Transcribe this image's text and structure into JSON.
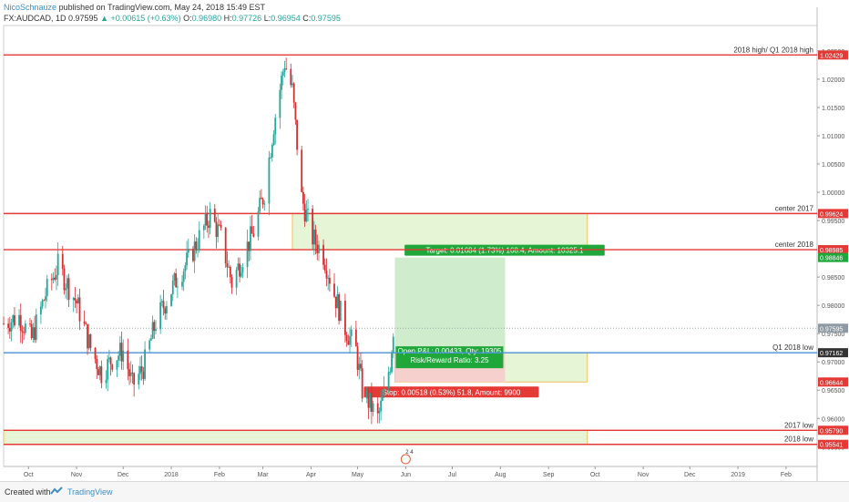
{
  "header": {
    "author": "NicoSchnauze",
    "published": "published on TradingView.com, May 24, 2018 15:49 EST",
    "symbol": "FX:AUDCAD, 1D",
    "last": "0.97595",
    "change": "▲ +0.00615 (+0.63%)",
    "o_label": "O:",
    "o_val": "0.96980",
    "h_label": "H:",
    "h_val": "0.97726",
    "l_label": "L:",
    "l_val": "0.96954",
    "c_label": "C:",
    "c_val": "0.97595"
  },
  "footer": {
    "created_with": "Created with",
    "brand": "TradingView"
  },
  "colors": {
    "up": "#26a69a",
    "down": "#d32f2f",
    "level": "#e53935",
    "blue_level": "#4a90d9",
    "zone_fill": "#e6f5d6",
    "zone_border": "#f0c060",
    "target_fill": "#cfeccd",
    "stop_fill": "#f6d0cc",
    "badge_green": "#1fa73a",
    "badge_red": "#e53935",
    "badge_dark": "#333333"
  },
  "chart_data": {
    "type": "candlestick",
    "instrument": "FX:AUDCAD",
    "timeframe": "1D",
    "y_range": [
      0.9515,
      1.0295
    ],
    "y_ticks": [
      "1.02500",
      "1.02000",
      "1.01500",
      "1.01000",
      "1.00500",
      "1.00000",
      "0.99500",
      "0.98500",
      "0.98000",
      "0.97500",
      "0.97000",
      "0.96500",
      "0.96000",
      "0.95500"
    ],
    "x_ticks": [
      {
        "label": "Oct",
        "date": "2017-10-01"
      },
      {
        "label": "Nov",
        "date": "2017-11-01"
      },
      {
        "label": "Dec",
        "date": "2017-12-01"
      },
      {
        "label": "2018",
        "date": "2018-01-01"
      },
      {
        "label": "Feb",
        "date": "2018-02-01"
      },
      {
        "label": "Mar",
        "date": "2018-03-01"
      },
      {
        "label": "Apr",
        "date": "2018-04-01"
      },
      {
        "label": "May",
        "date": "2018-05-01"
      },
      {
        "label": "Jun",
        "date": "2018-06-01"
      },
      {
        "label": "Jul",
        "date": "2018-07-01"
      },
      {
        "label": "Aug",
        "date": "2018-08-01"
      },
      {
        "label": "Sep",
        "date": "2018-09-01"
      },
      {
        "label": "Oct",
        "date": "2018-10-01"
      },
      {
        "label": "Nov",
        "date": "2018-11-01"
      },
      {
        "label": "Dec",
        "date": "2018-12-01"
      },
      {
        "label": "2019",
        "date": "2019-01-01"
      },
      {
        "label": "Feb",
        "date": "2019-02-01"
      }
    ],
    "x_start_date": "2017-09-15",
    "x_end_date": "2019-02-21",
    "price_path": [
      {
        "date": "2017-09-15",
        "value": 0.9768
      },
      {
        "date": "2017-09-25",
        "value": 0.978
      },
      {
        "date": "2017-10-03",
        "value": 0.974
      },
      {
        "date": "2017-10-12",
        "value": 0.982
      },
      {
        "date": "2017-10-20",
        "value": 0.987
      },
      {
        "date": "2017-11-01",
        "value": 0.9805
      },
      {
        "date": "2017-11-10",
        "value": 0.9725
      },
      {
        "date": "2017-11-17",
        "value": 0.968
      },
      {
        "date": "2017-11-24",
        "value": 0.9705
      },
      {
        "date": "2017-12-01",
        "value": 0.972
      },
      {
        "date": "2017-12-07",
        "value": 0.9658
      },
      {
        "date": "2017-12-14",
        "value": 0.969
      },
      {
        "date": "2017-12-22",
        "value": 0.977
      },
      {
        "date": "2018-01-05",
        "value": 0.985
      },
      {
        "date": "2018-01-12",
        "value": 0.988
      },
      {
        "date": "2018-01-19",
        "value": 0.992
      },
      {
        "date": "2018-01-26",
        "value": 0.996
      },
      {
        "date": "2018-02-02",
        "value": 0.992
      },
      {
        "date": "2018-02-09",
        "value": 0.984
      },
      {
        "date": "2018-02-15",
        "value": 0.988
      },
      {
        "date": "2018-02-23",
        "value": 0.993
      },
      {
        "date": "2018-03-02",
        "value": 1.0
      },
      {
        "date": "2018-03-08",
        "value": 1.012
      },
      {
        "date": "2018-03-15",
        "value": 1.023
      },
      {
        "date": "2018-03-20",
        "value": 1.018
      },
      {
        "date": "2018-03-26",
        "value": 0.999
      },
      {
        "date": "2018-04-02",
        "value": 0.992
      },
      {
        "date": "2018-04-09",
        "value": 0.989
      },
      {
        "date": "2018-04-16",
        "value": 0.982
      },
      {
        "date": "2018-04-23",
        "value": 0.976
      },
      {
        "date": "2018-04-30",
        "value": 0.972
      },
      {
        "date": "2018-05-04",
        "value": 0.965
      },
      {
        "date": "2018-05-08",
        "value": 0.963
      },
      {
        "date": "2018-05-14",
        "value": 0.96
      },
      {
        "date": "2018-05-18",
        "value": 0.964
      },
      {
        "date": "2018-05-22",
        "value": 0.9698
      },
      {
        "date": "2018-05-24",
        "value": 0.97595
      }
    ],
    "horizontal_levels": [
      {
        "label": "2018 high/ Q1 2018 high",
        "value": 1.02429,
        "value_text": "1.02429",
        "color": "#e53935"
      },
      {
        "label": "center 2017",
        "value": 0.99624,
        "value_text": "0.99624",
        "color": "#e53935"
      },
      {
        "label": "center 2018",
        "value": 0.98985,
        "value_text": "0.98985",
        "color": "#e53935"
      },
      {
        "label": "Q1 2018 low",
        "value": 0.97162,
        "value_text": "0.97162",
        "color": "#4a90d9"
      },
      {
        "label": "2017 low",
        "value": 0.9579,
        "value_text": "0.95790",
        "color": "#e53935"
      },
      {
        "label": "2018 low",
        "value": 0.95541,
        "value_text": "0.95541",
        "color": "#e53935"
      }
    ],
    "price_badges": [
      {
        "value": 0.98846,
        "text": "0.98846",
        "kind": "green"
      },
      {
        "value": 0.97595,
        "text": "0.97595",
        "kind": "gray"
      },
      {
        "value": 0.96644,
        "text": "0.96644",
        "kind": "red"
      }
    ],
    "zones": [
      {
        "from_date": "2018-03-20",
        "to_date": "2018-09-26",
        "low": 0.98985,
        "high": 0.99624
      },
      {
        "from_date": "2018-05-25",
        "to_date": "2018-09-26",
        "low": 0.96644,
        "high": 0.97162
      },
      {
        "from_date": "2017-09-15",
        "to_date": "2018-09-26",
        "low": 0.95541,
        "high": 0.9579
      }
    ],
    "position": {
      "side": "long",
      "from_date": "2018-05-25",
      "to_date": "2018-08-04",
      "entry": 0.97162,
      "target": 0.98846,
      "stop": 0.96644,
      "target_text": "Target: 0.01684 (1.73%) 168.4, Amount: 10325.1",
      "open_text": "Open P&L: 0.00433, Qty: 19305",
      "rr_text": "Risk/Reward Ratio: 3.25",
      "stop_text": "Stop: 0.00518 (0.53%) 51.8, Amount: 9900"
    },
    "current_price": 0.97595,
    "event_marker": {
      "date": "2018-06-01",
      "text": "2 4"
    }
  }
}
